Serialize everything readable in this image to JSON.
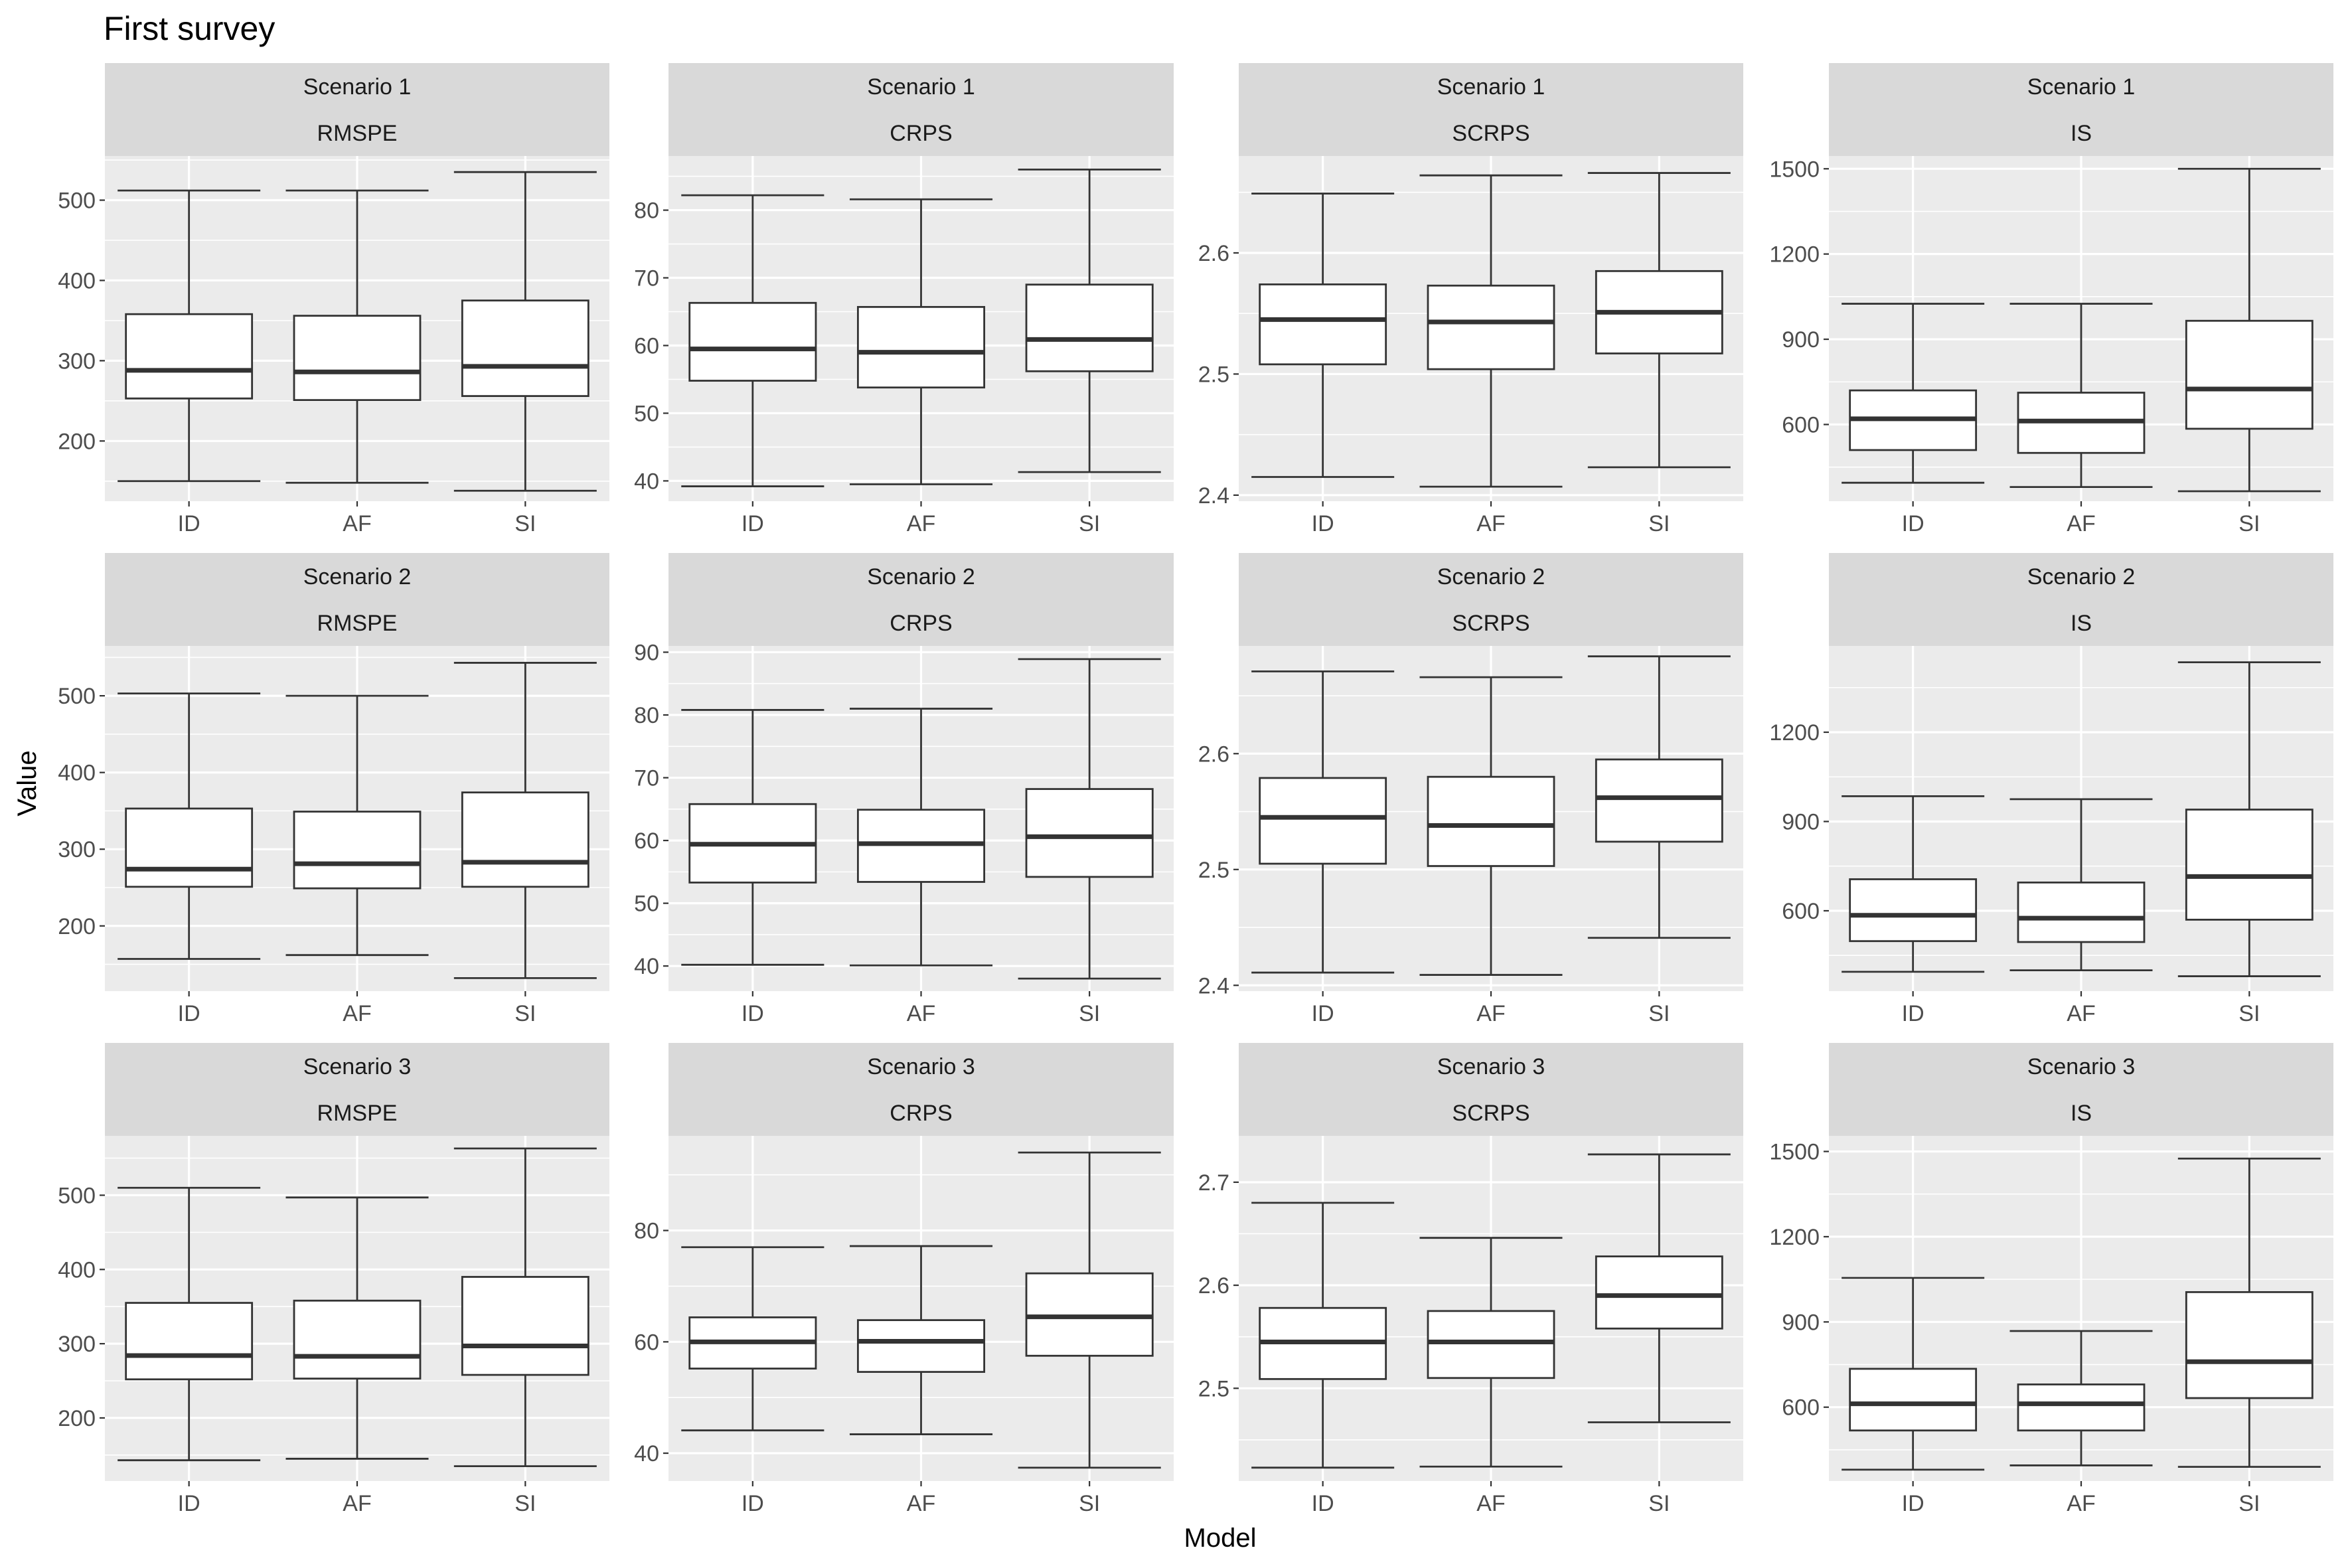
{
  "chart_data": {
    "type": "box",
    "title": "First survey",
    "xlabel": "Model",
    "ylabel": "Value",
    "categories": [
      "ID",
      "AF",
      "SI"
    ],
    "rows": [
      "Scenario 1",
      "Scenario 2",
      "Scenario 3"
    ],
    "columns": [
      "RMSPE",
      "CRPS",
      "SCRPS",
      "IS"
    ],
    "grid": true,
    "panels": [
      {
        "scenario": "Scenario 1",
        "metric": "RMSPE",
        "ylim": [
          125,
          555
        ],
        "ticks": [
          200,
          300,
          400,
          500
        ],
        "tick_labels": [
          "200",
          "300",
          "400",
          "500"
        ],
        "boxes": [
          {
            "model": "ID",
            "min": 150,
            "q1": 253,
            "median": 288,
            "q3": 358,
            "max": 512
          },
          {
            "model": "AF",
            "min": 148,
            "q1": 251,
            "median": 286,
            "q3": 356,
            "max": 512
          },
          {
            "model": "SI",
            "min": 138,
            "q1": 256,
            "median": 293,
            "q3": 375,
            "max": 535
          }
        ]
      },
      {
        "scenario": "Scenario 1",
        "metric": "CRPS",
        "ylim": [
          37,
          88
        ],
        "ticks": [
          40,
          50,
          60,
          70,
          80
        ],
        "tick_labels": [
          "40",
          "50",
          "60",
          "70",
          "80"
        ],
        "boxes": [
          {
            "model": "ID",
            "min": 39.2,
            "q1": 54.8,
            "median": 59.5,
            "q3": 66.3,
            "max": 82.2
          },
          {
            "model": "AF",
            "min": 39.5,
            "q1": 53.8,
            "median": 59.0,
            "q3": 65.7,
            "max": 81.6
          },
          {
            "model": "SI",
            "min": 41.3,
            "q1": 56.2,
            "median": 60.9,
            "q3": 69.0,
            "max": 86.0
          }
        ]
      },
      {
        "scenario": "Scenario 1",
        "metric": "SCRPS",
        "ylim": [
          2.395,
          2.68
        ],
        "ticks": [
          2.4,
          2.5,
          2.6
        ],
        "tick_labels": [
          "2.4",
          "2.5",
          "2.6"
        ],
        "boxes": [
          {
            "model": "ID",
            "min": 2.415,
            "q1": 2.508,
            "median": 2.545,
            "q3": 2.574,
            "max": 2.649
          },
          {
            "model": "AF",
            "min": 2.407,
            "q1": 2.504,
            "median": 2.543,
            "q3": 2.573,
            "max": 2.664
          },
          {
            "model": "SI",
            "min": 2.423,
            "q1": 2.517,
            "median": 2.551,
            "q3": 2.585,
            "max": 2.666
          }
        ]
      },
      {
        "scenario": "Scenario 1",
        "metric": "IS",
        "ylim": [
          330,
          1545
        ],
        "ticks": [
          600,
          900,
          1200,
          1500
        ],
        "tick_labels": [
          "600",
          "900",
          "1200",
          "1500"
        ],
        "boxes": [
          {
            "model": "ID",
            "min": 395,
            "q1": 510,
            "median": 620,
            "q3": 720,
            "max": 1025
          },
          {
            "model": "AF",
            "min": 380,
            "q1": 500,
            "median": 612,
            "q3": 712,
            "max": 1025
          },
          {
            "model": "SI",
            "min": 365,
            "q1": 585,
            "median": 725,
            "q3": 965,
            "max": 1500
          }
        ]
      },
      {
        "scenario": "Scenario 2",
        "metric": "RMSPE",
        "ylim": [
          115,
          565
        ],
        "ticks": [
          200,
          300,
          400,
          500
        ],
        "tick_labels": [
          "200",
          "300",
          "400",
          "500"
        ],
        "boxes": [
          {
            "model": "ID",
            "min": 157,
            "q1": 251,
            "median": 274,
            "q3": 353,
            "max": 503
          },
          {
            "model": "AF",
            "min": 162,
            "q1": 249,
            "median": 281,
            "q3": 349,
            "max": 500
          },
          {
            "model": "SI",
            "min": 132,
            "q1": 251,
            "median": 283,
            "q3": 374,
            "max": 543
          }
        ]
      },
      {
        "scenario": "Scenario 2",
        "metric": "CRPS",
        "ylim": [
          36,
          91
        ],
        "ticks": [
          40,
          50,
          60,
          70,
          80,
          90
        ],
        "tick_labels": [
          "40",
          "50",
          "60",
          "70",
          "80",
          "90"
        ],
        "boxes": [
          {
            "model": "ID",
            "min": 40.2,
            "q1": 53.3,
            "median": 59.4,
            "q3": 65.8,
            "max": 80.8
          },
          {
            "model": "AF",
            "min": 40.1,
            "q1": 53.4,
            "median": 59.5,
            "q3": 64.9,
            "max": 81.0
          },
          {
            "model": "SI",
            "min": 38.0,
            "q1": 54.2,
            "median": 60.6,
            "q3": 68.2,
            "max": 88.9
          }
        ]
      },
      {
        "scenario": "Scenario 2",
        "metric": "SCRPS",
        "ylim": [
          2.395,
          2.693
        ],
        "ticks": [
          2.4,
          2.5,
          2.6
        ],
        "tick_labels": [
          "2.4",
          "2.5",
          "2.6"
        ],
        "boxes": [
          {
            "model": "ID",
            "min": 2.411,
            "q1": 2.505,
            "median": 2.545,
            "q3": 2.579,
            "max": 2.671
          },
          {
            "model": "AF",
            "min": 2.409,
            "q1": 2.503,
            "median": 2.538,
            "q3": 2.58,
            "max": 2.666
          },
          {
            "model": "SI",
            "min": 2.441,
            "q1": 2.524,
            "median": 2.562,
            "q3": 2.595,
            "max": 2.684
          }
        ]
      },
      {
        "scenario": "Scenario 2",
        "metric": "IS",
        "ylim": [
          330,
          1490
        ],
        "ticks": [
          600,
          900,
          1200
        ],
        "tick_labels": [
          "600",
          "900",
          "1200"
        ],
        "boxes": [
          {
            "model": "ID",
            "min": 395,
            "q1": 498,
            "median": 585,
            "q3": 706,
            "max": 985
          },
          {
            "model": "AF",
            "min": 400,
            "q1": 495,
            "median": 575,
            "q3": 695,
            "max": 975
          },
          {
            "model": "SI",
            "min": 380,
            "q1": 570,
            "median": 715,
            "q3": 940,
            "max": 1435
          }
        ]
      },
      {
        "scenario": "Scenario 3",
        "metric": "RMSPE",
        "ylim": [
          115,
          580
        ],
        "ticks": [
          200,
          300,
          400,
          500
        ],
        "tick_labels": [
          "200",
          "300",
          "400",
          "500"
        ],
        "boxes": [
          {
            "model": "ID",
            "min": 143,
            "q1": 252,
            "median": 284,
            "q3": 355,
            "max": 510
          },
          {
            "model": "AF",
            "min": 145,
            "q1": 253,
            "median": 283,
            "q3": 358,
            "max": 497
          },
          {
            "model": "SI",
            "min": 135,
            "q1": 258,
            "median": 297,
            "q3": 390,
            "max": 563
          }
        ]
      },
      {
        "scenario": "Scenario 3",
        "metric": "CRPS",
        "ylim": [
          35,
          97
        ],
        "ticks": [
          40,
          60,
          80
        ],
        "tick_labels": [
          "40",
          "60",
          "80"
        ],
        "boxes": [
          {
            "model": "ID",
            "min": 44.1,
            "q1": 55.2,
            "median": 60.0,
            "q3": 64.4,
            "max": 77.0
          },
          {
            "model": "AF",
            "min": 43.4,
            "q1": 54.6,
            "median": 60.1,
            "q3": 63.9,
            "max": 77.2
          },
          {
            "model": "SI",
            "min": 37.4,
            "q1": 57.5,
            "median": 64.5,
            "q3": 72.3,
            "max": 94.0
          }
        ]
      },
      {
        "scenario": "Scenario 3",
        "metric": "SCRPS",
        "ylim": [
          2.41,
          2.745
        ],
        "ticks": [
          2.5,
          2.6,
          2.7
        ],
        "tick_labels": [
          "2.5",
          "2.6",
          "2.7"
        ],
        "boxes": [
          {
            "model": "ID",
            "min": 2.423,
            "q1": 2.509,
            "median": 2.545,
            "q3": 2.578,
            "max": 2.68
          },
          {
            "model": "AF",
            "min": 2.424,
            "q1": 2.51,
            "median": 2.545,
            "q3": 2.575,
            "max": 2.646
          },
          {
            "model": "SI",
            "min": 2.467,
            "q1": 2.558,
            "median": 2.59,
            "q3": 2.628,
            "max": 2.727
          }
        ]
      },
      {
        "scenario": "Scenario 3",
        "metric": "IS",
        "ylim": [
          340,
          1555
        ],
        "ticks": [
          600,
          900,
          1200,
          1500
        ],
        "tick_labels": [
          "600",
          "900",
          "1200",
          "1500"
        ],
        "boxes": [
          {
            "model": "ID",
            "min": 380,
            "q1": 518,
            "median": 612,
            "q3": 735,
            "max": 1055
          },
          {
            "model": "AF",
            "min": 395,
            "q1": 518,
            "median": 612,
            "q3": 680,
            "max": 868
          },
          {
            "model": "SI",
            "min": 390,
            "q1": 632,
            "median": 760,
            "q3": 1005,
            "max": 1475
          }
        ]
      }
    ]
  }
}
